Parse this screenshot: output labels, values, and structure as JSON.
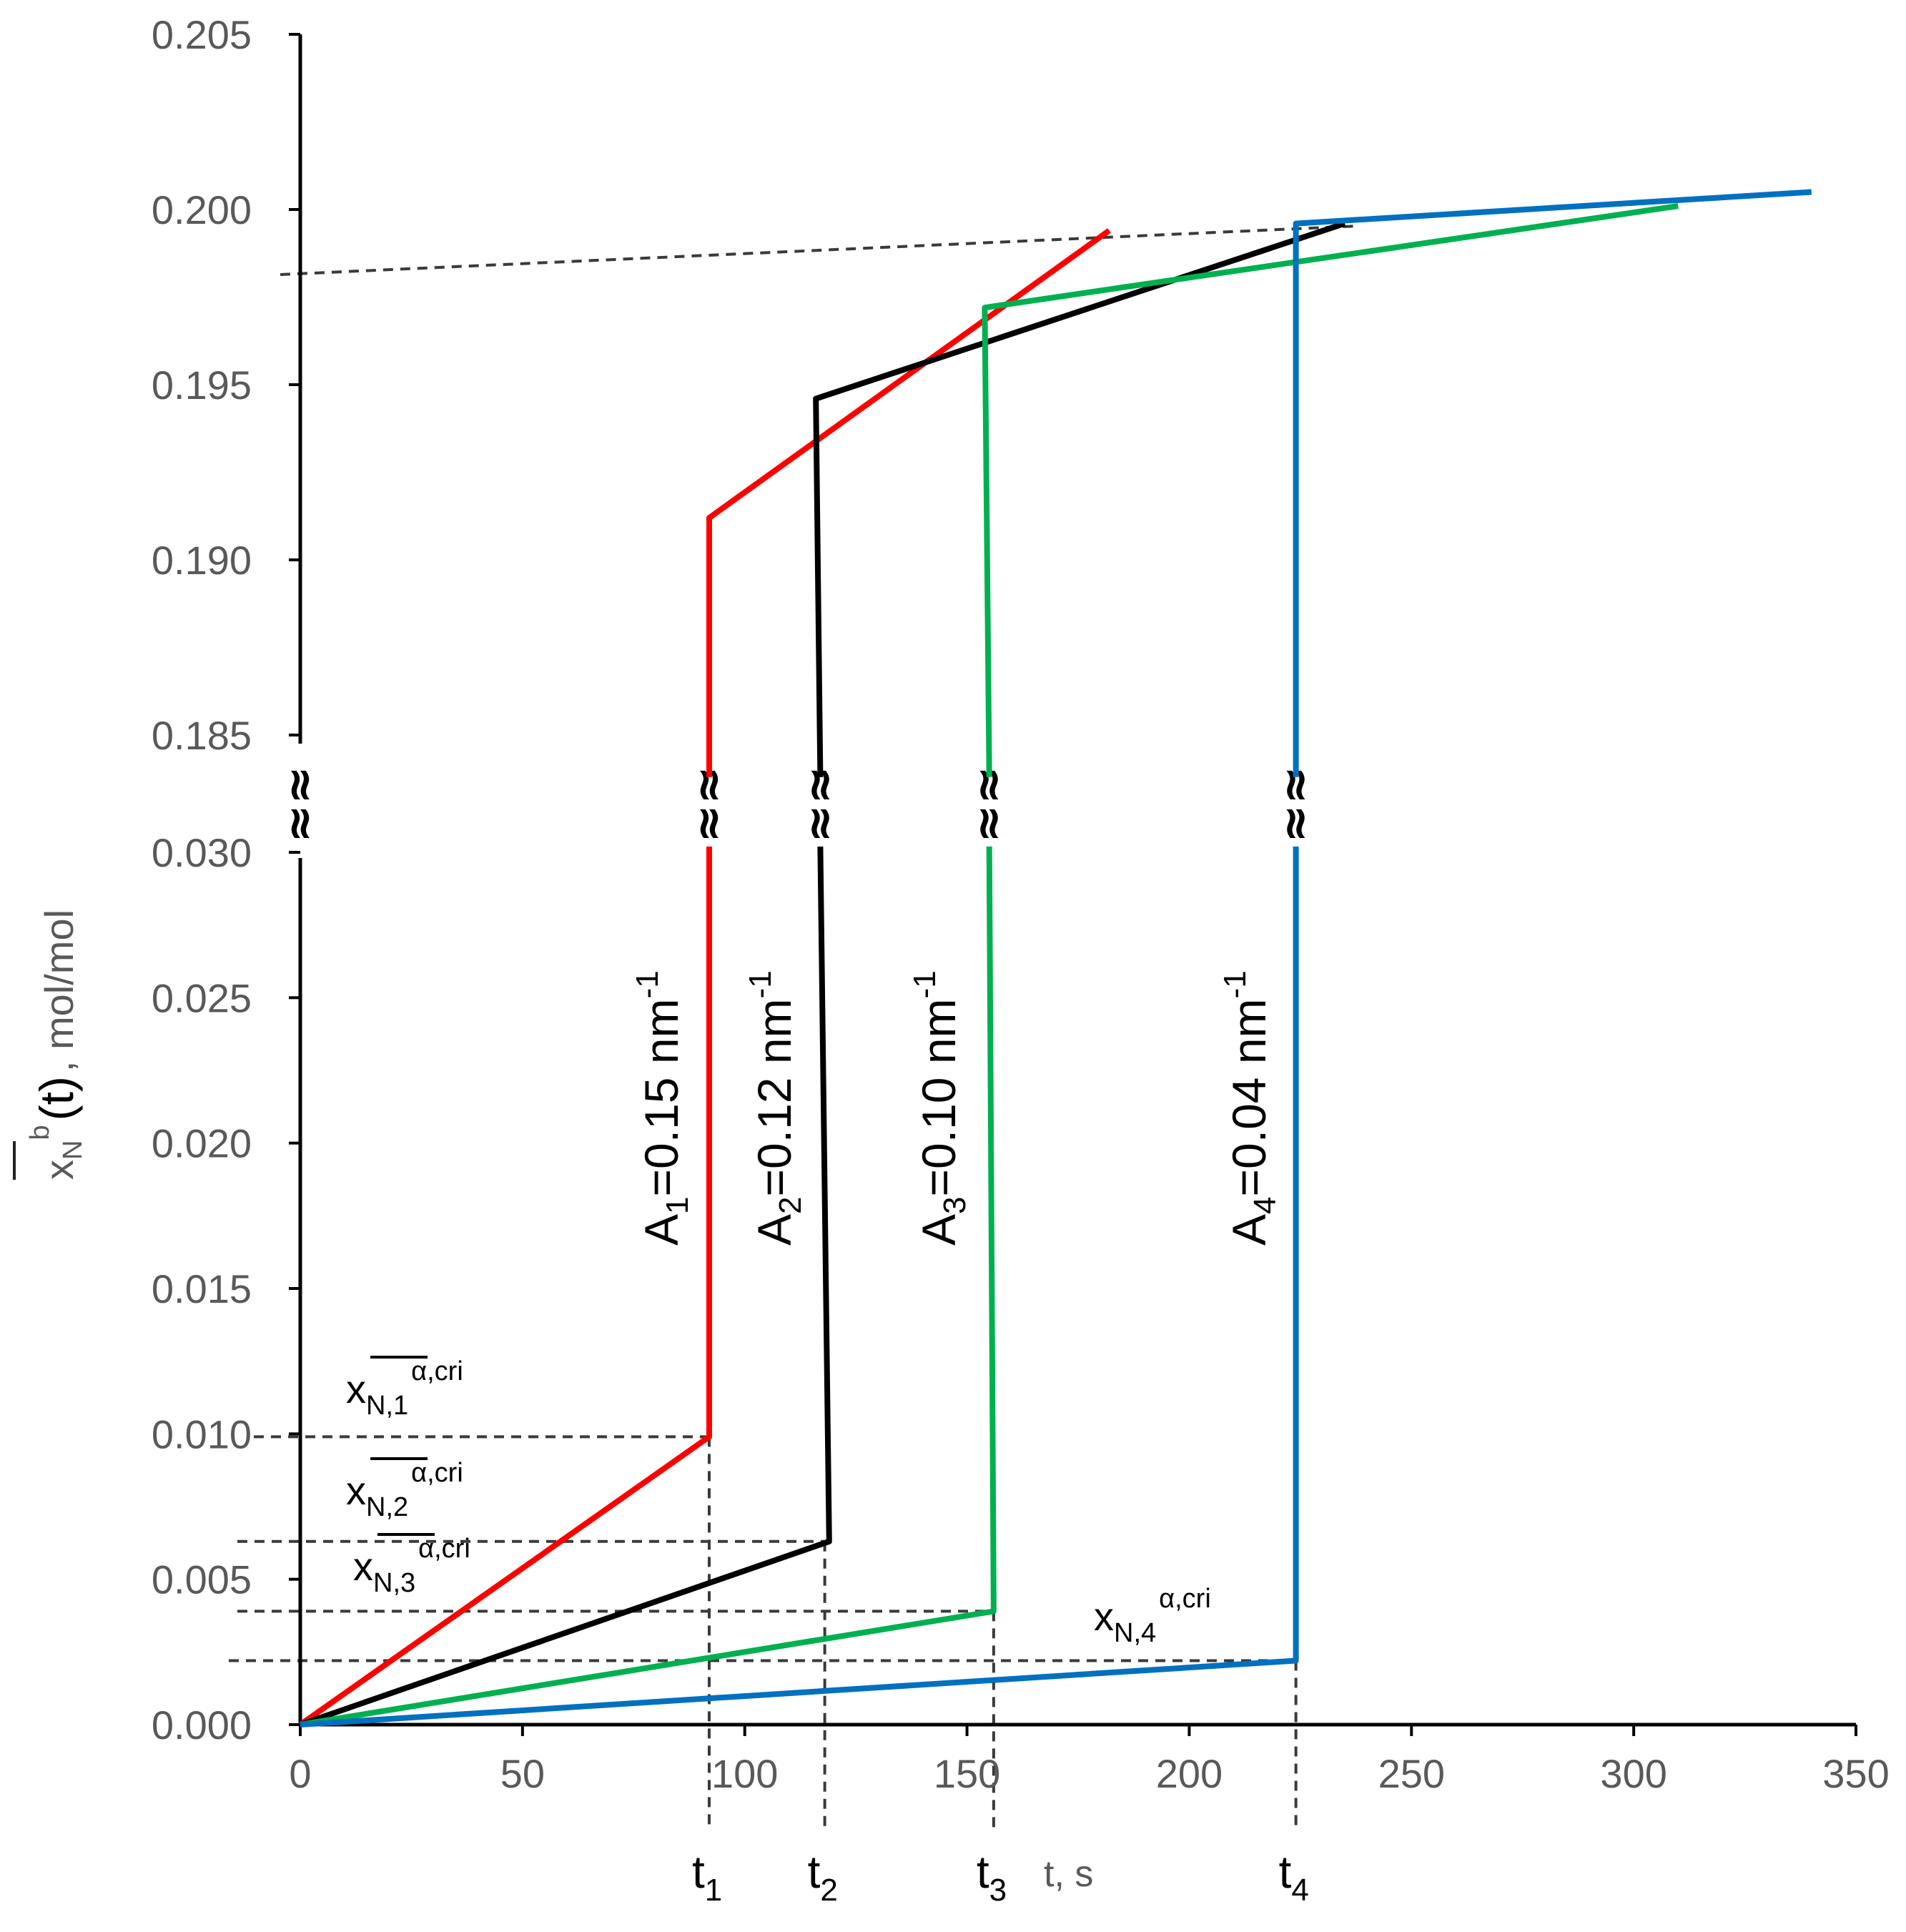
{
  "chart_data": {
    "type": "line",
    "xlabel": "t, s",
    "ylabel_main": "x",
    "ylabel_sub": "N",
    "ylabel_sup": "b",
    "ylabel_paren": "(t)",
    "ylabel_unit": ", mol/mol",
    "x_ticks": [
      "0",
      "50",
      "100",
      "150",
      "200",
      "250",
      "300",
      "350"
    ],
    "y_ticks_lower": [
      "0.000",
      "0.005",
      "0.010",
      "0.015",
      "0.020",
      "0.025",
      "0.030"
    ],
    "y_ticks_upper": [
      "0.185",
      "0.190",
      "0.195",
      "0.200",
      "0.205"
    ],
    "xlim": [
      0,
      350
    ],
    "ylim_lower": [
      0,
      0.03
    ],
    "ylim_upper": [
      0.185,
      0.205
    ],
    "axis_break_symbol": "≈",
    "series": [
      {
        "name": "A1=0.15 nm-1",
        "label_main": "A",
        "label_sub": "1",
        "label_rest": "=0.15 nm",
        "label_sup": "-1",
        "color": "#ff0000",
        "t_crit": 92,
        "points_lower": [
          [
            0,
            0
          ],
          [
            92,
            0.0099
          ],
          [
            92,
            0.0302
          ]
        ],
        "points_upper": [
          [
            92,
            0.1838
          ],
          [
            92,
            0.1912
          ],
          [
            182,
            0.1994
          ]
        ]
      },
      {
        "name": "A2=0.12 nm-1",
        "label_main": "A",
        "label_sub": "2",
        "label_rest": "=0.12 nm",
        "label_sup": "-1",
        "color": "#000000",
        "t_crit": 118,
        "points_lower": [
          [
            0,
            0
          ],
          [
            119,
            0.0063
          ],
          [
            117,
            0.0302
          ]
        ],
        "points_upper": [
          [
            117,
            0.1838
          ],
          [
            116,
            0.1946
          ],
          [
            235,
            0.1996
          ]
        ]
      },
      {
        "name": "A3=0.10 nm-1",
        "label_main": "A",
        "label_sub": "3",
        "label_rest": "=0.10 nm",
        "label_sup": "-1",
        "color": "#00b050",
        "t_crit": 156,
        "points_lower": [
          [
            0,
            0
          ],
          [
            156,
            0.0039
          ],
          [
            155,
            0.0302
          ]
        ],
        "points_upper": [
          [
            155,
            0.1838
          ],
          [
            154,
            0.1972
          ],
          [
            310,
            0.2001
          ]
        ]
      },
      {
        "name": "A4=0.04 nm-1",
        "label_main": "A",
        "label_sub": "4",
        "label_rest": "=0.04 nm",
        "label_sup": "-1",
        "color": "#0070c0",
        "t_crit": 224,
        "points_lower": [
          [
            0,
            0
          ],
          [
            224,
            0.0022
          ],
          [
            224,
            0.0302
          ]
        ],
        "points_upper": [
          [
            224,
            0.1838
          ],
          [
            224,
            0.1996
          ],
          [
            340,
            0.2005
          ]
        ]
      }
    ],
    "annotations": [
      {
        "main": "x",
        "sub": "N,1",
        "sup": "α,cri",
        "value": 0.0099
      },
      {
        "main": "x",
        "sub": "N,2",
        "sup": "α,cri",
        "value": 0.0063
      },
      {
        "main": "x",
        "sub": "N,3",
        "sup": "α,cri",
        "value": 0.0039
      },
      {
        "main": "x",
        "sub": "N,4",
        "sup": "α,cri",
        "value": 0.0022
      }
    ],
    "t_markers": [
      {
        "main": "t",
        "sub": "1"
      },
      {
        "main": "t",
        "sub": "2"
      },
      {
        "main": "t",
        "sub": "3"
      },
      {
        "main": "t",
        "sub": "4"
      }
    ]
  }
}
